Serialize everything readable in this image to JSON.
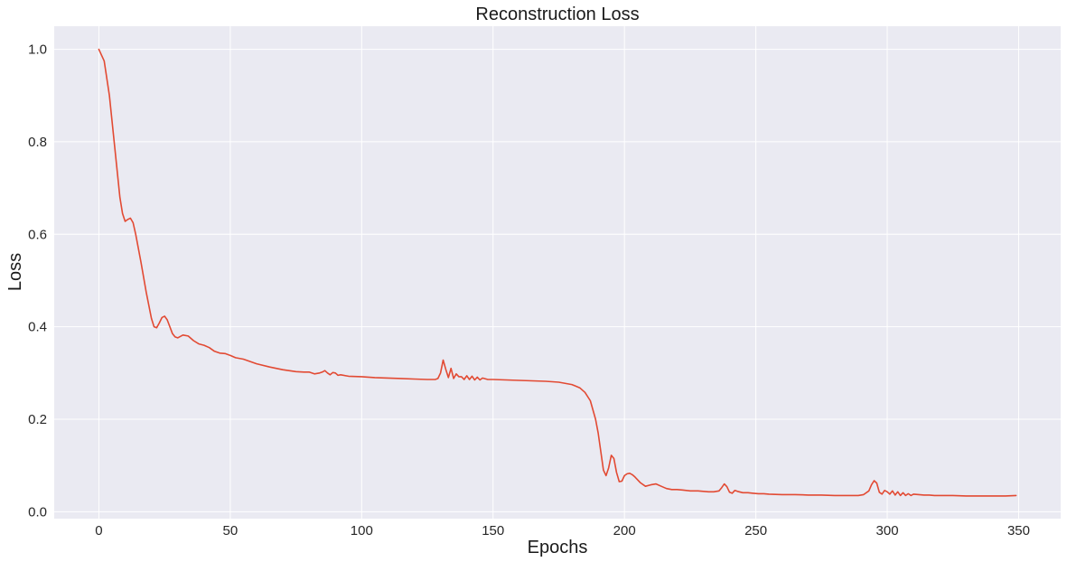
{
  "chart_data": {
    "type": "line",
    "title": "Reconstruction Loss",
    "xlabel": "Epochs",
    "ylabel": "Loss",
    "xlim": [
      -17,
      366
    ],
    "ylim": [
      -0.015,
      1.05
    ],
    "xticks": [
      0,
      50,
      100,
      150,
      200,
      250,
      300,
      350
    ],
    "xtick_labels": [
      "0",
      "50",
      "100",
      "150",
      "200",
      "250",
      "300",
      "350"
    ],
    "yticks": [
      0.0,
      0.2,
      0.4,
      0.6,
      0.8,
      1.0
    ],
    "ytick_labels": [
      "0.0",
      "0.2",
      "0.4",
      "0.6",
      "0.8",
      "1.0"
    ],
    "grid": true,
    "legend": false,
    "colors": {
      "series": "#e24a33",
      "plot_background": "#eaeaf2",
      "grid": "#ffffff"
    },
    "series": [
      {
        "x": [
          0,
          2,
          4,
          6,
          8,
          9,
          10,
          11,
          12,
          13,
          14,
          16,
          18,
          20,
          21,
          22,
          23,
          24,
          25,
          26,
          27,
          28,
          29,
          30,
          32,
          34,
          36,
          38,
          40,
          42,
          44,
          46,
          48,
          50,
          52,
          55,
          60,
          65,
          70,
          75,
          78,
          80,
          82,
          84,
          85,
          86,
          87,
          88,
          89,
          90,
          91,
          92,
          95,
          100,
          105,
          110,
          115,
          120,
          125,
          128,
          129,
          130,
          131,
          132,
          133,
          134,
          135,
          136,
          137,
          138,
          139,
          140,
          141,
          142,
          143,
          144,
          145,
          146,
          148,
          150,
          155,
          160,
          165,
          170,
          175,
          180,
          183,
          185,
          187,
          189,
          190,
          191,
          192,
          193,
          194,
          195,
          196,
          197,
          198,
          199,
          200,
          201,
          202,
          203,
          204,
          206,
          208,
          210,
          212,
          214,
          216,
          218,
          220,
          222,
          225,
          228,
          230,
          232,
          234,
          236,
          237,
          238,
          239,
          240,
          241,
          242,
          243,
          245,
          247,
          249,
          251,
          253,
          255,
          260,
          265,
          270,
          275,
          280,
          285,
          289,
          291,
          293,
          294,
          295,
          296,
          297,
          298,
          299,
          300,
          301,
          302,
          303,
          304,
          305,
          306,
          307,
          308,
          309,
          310,
          312,
          314,
          316,
          318,
          320,
          325,
          330,
          335,
          340,
          345,
          349
        ],
        "y": [
          1.0,
          0.975,
          0.9,
          0.79,
          0.68,
          0.645,
          0.628,
          0.632,
          0.635,
          0.625,
          0.6,
          0.54,
          0.475,
          0.418,
          0.4,
          0.398,
          0.408,
          0.42,
          0.423,
          0.415,
          0.4,
          0.385,
          0.378,
          0.376,
          0.382,
          0.38,
          0.37,
          0.363,
          0.36,
          0.355,
          0.347,
          0.343,
          0.342,
          0.338,
          0.333,
          0.33,
          0.32,
          0.313,
          0.307,
          0.303,
          0.302,
          0.302,
          0.298,
          0.3,
          0.302,
          0.305,
          0.3,
          0.296,
          0.301,
          0.3,
          0.295,
          0.296,
          0.293,
          0.292,
          0.29,
          0.289,
          0.288,
          0.287,
          0.286,
          0.286,
          0.288,
          0.3,
          0.328,
          0.308,
          0.29,
          0.31,
          0.288,
          0.298,
          0.292,
          0.292,
          0.286,
          0.294,
          0.286,
          0.293,
          0.285,
          0.291,
          0.285,
          0.289,
          0.286,
          0.286,
          0.285,
          0.284,
          0.283,
          0.282,
          0.28,
          0.275,
          0.268,
          0.258,
          0.24,
          0.2,
          0.17,
          0.13,
          0.09,
          0.078,
          0.095,
          0.122,
          0.115,
          0.085,
          0.065,
          0.066,
          0.078,
          0.082,
          0.083,
          0.08,
          0.075,
          0.063,
          0.055,
          0.058,
          0.06,
          0.055,
          0.05,
          0.048,
          0.048,
          0.047,
          0.045,
          0.045,
          0.044,
          0.043,
          0.043,
          0.045,
          0.052,
          0.06,
          0.054,
          0.042,
          0.04,
          0.046,
          0.044,
          0.041,
          0.041,
          0.04,
          0.039,
          0.039,
          0.038,
          0.037,
          0.037,
          0.036,
          0.036,
          0.035,
          0.035,
          0.035,
          0.037,
          0.045,
          0.058,
          0.067,
          0.062,
          0.042,
          0.038,
          0.046,
          0.043,
          0.038,
          0.045,
          0.036,
          0.043,
          0.035,
          0.041,
          0.035,
          0.039,
          0.035,
          0.038,
          0.037,
          0.036,
          0.036,
          0.035,
          0.035,
          0.035,
          0.034,
          0.034,
          0.034,
          0.034,
          0.035
        ]
      }
    ]
  }
}
